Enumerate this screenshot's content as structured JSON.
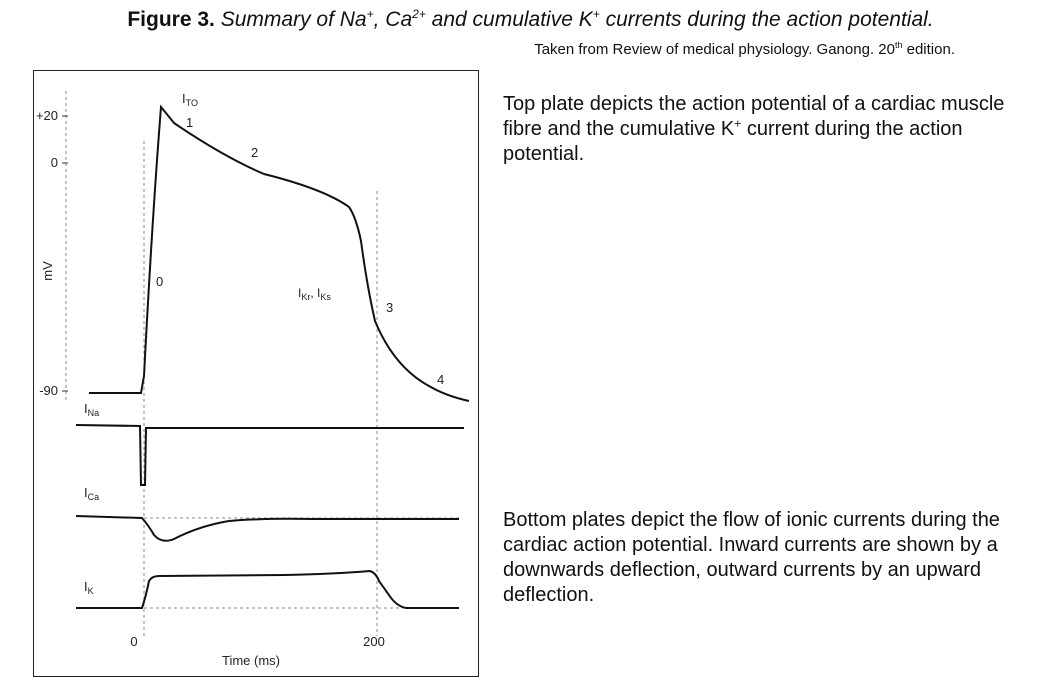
{
  "caption": {
    "label": "Figure 3.",
    "p1": "Summary of Na",
    "s1": "+",
    "p2": ", Ca",
    "s2": "2+",
    "p3": " and cumulative K",
    "s3": "+",
    "p4": " currents during the action potential."
  },
  "source": {
    "before": "Taken from Review of medical physiology. Ganong. 20",
    "sup": "th",
    "after": " edition."
  },
  "diagram": {
    "y_axis_label": "mV",
    "y_ticks": [
      "+20",
      "0",
      "-90"
    ],
    "phase_labels": [
      "0",
      "1",
      "2",
      "3",
      "4"
    ],
    "current_labels": {
      "ito": "I",
      "ito_sub": "TO",
      "ikr": "I",
      "ikr_sub": "Kr",
      "sep": ", I",
      "iks_sub": "Ks",
      "ina": "I",
      "ina_sub": "Na",
      "ica": "I",
      "ica_sub": "Ca",
      "ik": "I",
      "ik_sub": "K"
    },
    "x_ticks": [
      "0",
      "200"
    ],
    "x_axis_label": "Time (ms)"
  },
  "text_top": {
    "before": "Top plate depicts the action potential of a cardiac muscle fibre and the cumulative K",
    "sup": "+",
    "after": " current during the action potential."
  },
  "text_bottom": "Bottom plates depict the flow of ionic currents during the cardiac action potential.  Inward currents are shown by a downwards deflection, outward currents by an upward deflection."
}
